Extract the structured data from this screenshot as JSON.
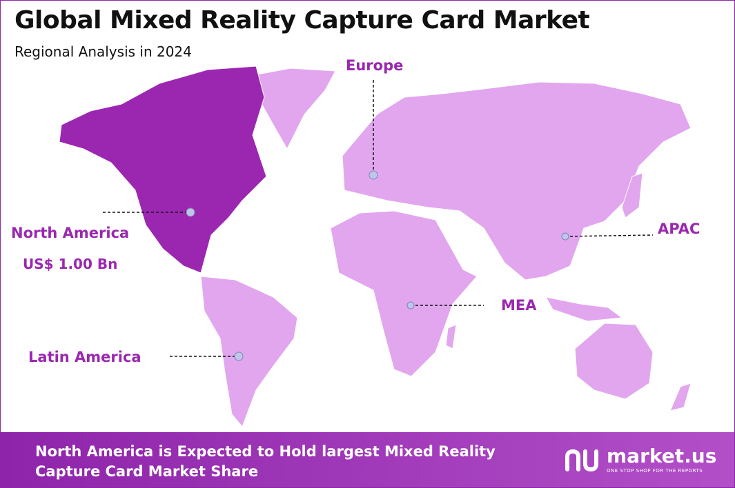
{
  "header": {
    "title": "Global Mixed Reality Capture Card Market",
    "subtitle": "Regional Analysis in 2024"
  },
  "regions": {
    "north_america": {
      "label": "North America",
      "value": "US$ 1.00 Bn"
    },
    "europe": {
      "label": "Europe"
    },
    "apac": {
      "label": "APAC"
    },
    "mea": {
      "label": "MEA"
    },
    "latin_america": {
      "label": "Latin America"
    }
  },
  "footer": {
    "text": "North America is Expected to Hold largest Mixed Reality Capture Card Market Share",
    "brand": "market.us",
    "tagline": "ONE STOP SHOP FOR THE REPORTS"
  }
}
